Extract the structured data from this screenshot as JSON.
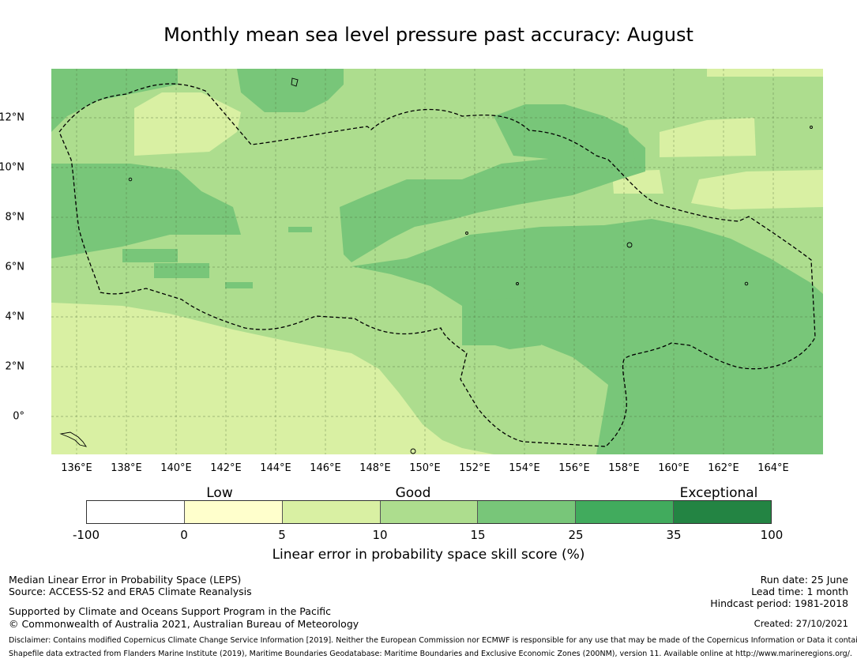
{
  "title": "Monthly mean sea level pressure past accuracy: August",
  "map": {
    "x_ticks": [
      "136°E",
      "138°E",
      "140°E",
      "142°E",
      "144°E",
      "146°E",
      "148°E",
      "150°E",
      "152°E",
      "154°E",
      "156°E",
      "158°E",
      "160°E",
      "162°E",
      "164°E"
    ],
    "y_ticks": [
      "12°N",
      "10°N",
      "8°N",
      "6°N",
      "4°N",
      "2°N",
      "0°"
    ],
    "lon_range": [
      135,
      166
    ],
    "lat_range": [
      -1.5,
      14
    ],
    "colors": {
      "low": "#d9f0a3",
      "good_light": "#addd8e",
      "good_dark": "#78c679",
      "boundary": "#000000"
    }
  },
  "colorbar": {
    "categories": [
      "Low",
      "Good",
      "Exceptional"
    ],
    "ticks": [
      "-100",
      "0",
      "5",
      "10",
      "15",
      "25",
      "35",
      "100"
    ],
    "colors": [
      "#ffffff",
      "#ffffcc",
      "#d9f0a3",
      "#addd8e",
      "#78c679",
      "#41ab5d",
      "#238443"
    ],
    "label": "Linear error in probability space skill score (%)"
  },
  "footer": {
    "left_line1": "Median Linear Error in Probability Space (LEPS)",
    "left_line2": "Source: ACCESS-S2 and ERA5 Climate Reanalysis",
    "left_line3": "Supported by Climate and Oceans Support Program in the Pacific",
    "left_line4": "© Commonwealth of Australia 2021, Australian Bureau of Meteorology",
    "run_date": "Run date: 25 June",
    "lead_time": "Lead time: 1 month",
    "hindcast": "Hindcast period: 1981-2018",
    "created": "Created: 27/10/2021",
    "disclaimer1": "Disclaimer: Contains modified Copernicus Climate Change Service Information [2019]. Neither the European Commission nor ECMWF is responsible for any use that may be made of the Copernicus Information or Data it contains.",
    "disclaimer2": "Shapefile data extracted from Flanders Marine Institute (2019), Maritime Boundaries Geodatabase: Maritime Boundaries and Exclusive Economic Zones (200NM), version 11. Available online at http://www.marineregions.org/."
  }
}
